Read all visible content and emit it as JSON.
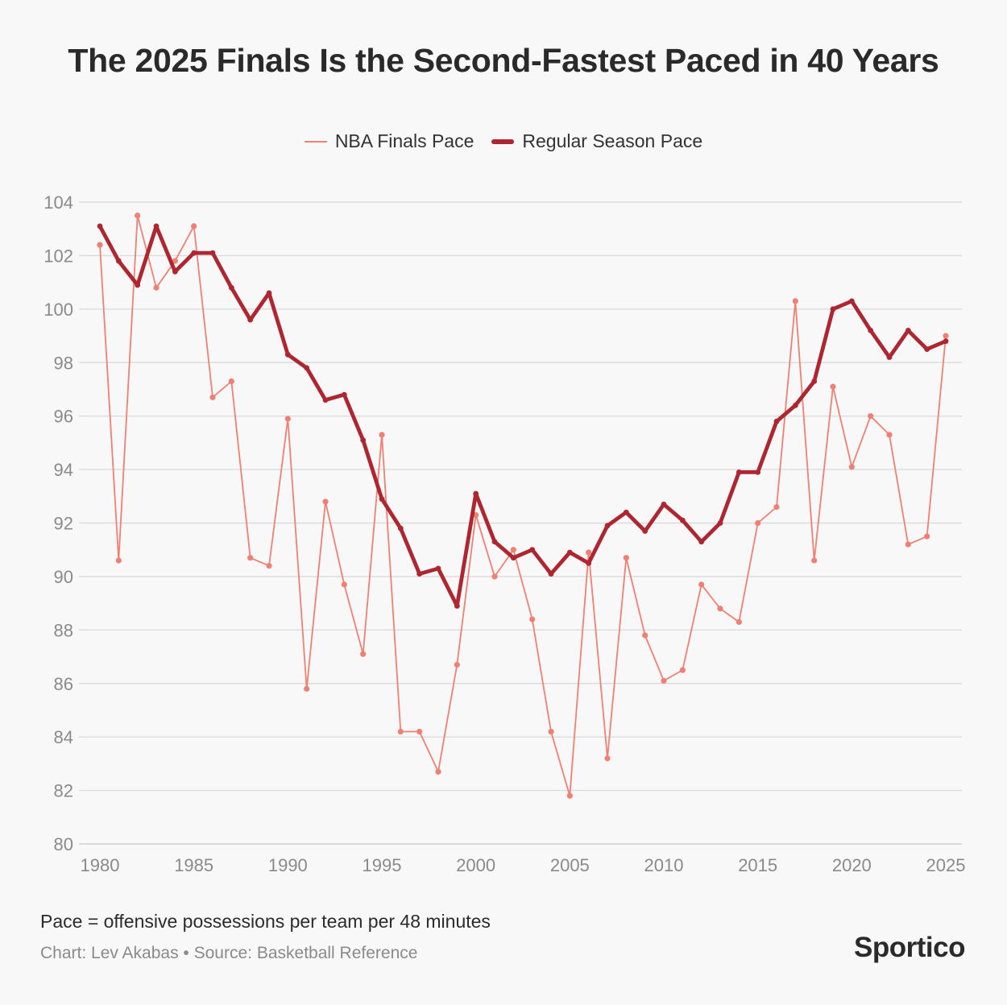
{
  "header": {
    "title": "The 2025 Finals Is the Second-Fastest Paced in 40 Years"
  },
  "footer": {
    "note": "Pace = offensive possessions per team per 48 minutes",
    "credit": "Chart: Lev Akabas • Source: Basketball Reference",
    "logo": "Sportico"
  },
  "colors": {
    "background": "#f8f8f8",
    "finals": "#f08073",
    "regular": "#ad2630",
    "grid": "#dcdcdc",
    "tick": "#8a8a8a"
  },
  "chart_data": {
    "type": "line",
    "title": "The 2025 Finals Is the Second-Fastest Paced in 40 Years",
    "xlabel": "",
    "ylabel": "",
    "xlim": [
      1980,
      2025
    ],
    "ylim": [
      80,
      104
    ],
    "x_ticks": [
      "1980",
      "1985",
      "1990",
      "1995",
      "2000",
      "2005",
      "2010",
      "2015",
      "2020",
      "2025"
    ],
    "y_ticks": [
      "80",
      "82",
      "84",
      "86",
      "88",
      "90",
      "92",
      "94",
      "96",
      "98",
      "100",
      "102",
      "104"
    ],
    "grid": true,
    "legend_position": "top-center",
    "x": [
      1980,
      1981,
      1982,
      1983,
      1984,
      1985,
      1986,
      1987,
      1988,
      1989,
      1990,
      1991,
      1992,
      1993,
      1994,
      1995,
      1996,
      1997,
      1998,
      1999,
      2000,
      2001,
      2002,
      2003,
      2004,
      2005,
      2006,
      2007,
      2008,
      2009,
      2010,
      2011,
      2012,
      2013,
      2014,
      2015,
      2016,
      2017,
      2018,
      2019,
      2020,
      2021,
      2022,
      2023,
      2024,
      2025
    ],
    "series": [
      {
        "name": "NBA Finals Pace",
        "values": [
          102.4,
          90.6,
          103.5,
          100.8,
          101.8,
          103.1,
          96.7,
          97.3,
          90.7,
          90.4,
          95.9,
          85.8,
          92.8,
          89.7,
          87.1,
          95.3,
          84.2,
          84.2,
          82.7,
          86.7,
          92.3,
          90.0,
          91.0,
          88.4,
          84.2,
          81.8,
          90.9,
          83.2,
          90.7,
          87.8,
          86.1,
          86.5,
          89.7,
          88.8,
          88.3,
          92.0,
          92.6,
          100.3,
          90.6,
          97.1,
          94.1,
          96.0,
          95.3,
          91.2,
          91.5,
          99.0
        ]
      },
      {
        "name": "Regular Season Pace",
        "values": [
          103.1,
          101.8,
          100.9,
          103.1,
          101.4,
          102.1,
          102.1,
          100.8,
          99.6,
          100.6,
          98.3,
          97.8,
          96.6,
          96.8,
          95.1,
          92.9,
          91.8,
          90.1,
          90.3,
          88.9,
          93.1,
          91.3,
          90.7,
          91.0,
          90.1,
          90.9,
          90.5,
          91.9,
          92.4,
          91.7,
          92.7,
          92.1,
          91.3,
          92.0,
          93.9,
          93.9,
          95.8,
          96.4,
          97.3,
          100.0,
          100.3,
          99.2,
          98.2,
          99.2,
          98.5,
          98.8
        ]
      }
    ]
  }
}
